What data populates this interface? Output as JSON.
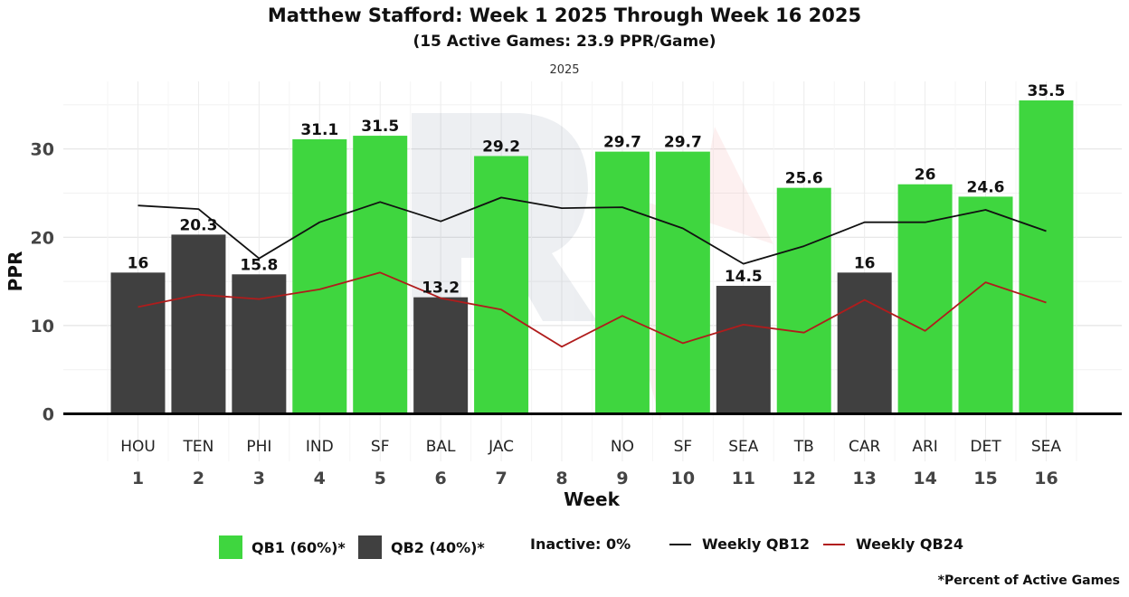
{
  "chart_data": {
    "type": "bar",
    "title": "Matthew Stafford: Week 1 2025 Through Week 16 2025",
    "subtitle": "(15 Active Games: 23.9 PPR/Game)",
    "facet_label": "2025",
    "xlabel": "Week",
    "ylabel": "PPR",
    "ylim": [
      0,
      36.5
    ],
    "y_ticks": [
      0,
      10,
      20,
      30
    ],
    "weeks": [
      1,
      2,
      3,
      4,
      5,
      6,
      7,
      8,
      9,
      10,
      11,
      12,
      13,
      14,
      15,
      16
    ],
    "opponents": [
      "HOU",
      "TEN",
      "PHI",
      "IND",
      "SF",
      "BAL",
      "JAC",
      "",
      "NO",
      "SF",
      "SEA",
      "TB",
      "CAR",
      "ARI",
      "DET",
      "SEA"
    ],
    "values": [
      16,
      20.3,
      15.8,
      31.1,
      31.5,
      13.2,
      29.2,
      null,
      29.7,
      29.7,
      14.5,
      25.6,
      16,
      26,
      24.6,
      35.5
    ],
    "tiers": [
      "QB2",
      "QB2",
      "QB2",
      "QB1",
      "QB1",
      "QB2",
      "QB1",
      null,
      "QB1",
      "QB1",
      "QB2",
      "QB1",
      "QB2",
      "QB1",
      "QB1",
      "QB1"
    ],
    "series_lines": [
      {
        "name": "Weekly QB12",
        "values": [
          23.6,
          23.2,
          17.6,
          21.7,
          24,
          21.8,
          24.5,
          23.3,
          23.4,
          21,
          17,
          19,
          21.7,
          21.7,
          23.1,
          20.7
        ]
      },
      {
        "name": "Weekly QB24",
        "values": [
          12.1,
          13.5,
          13,
          14.1,
          16,
          13.1,
          11.8,
          7.6,
          11.1,
          8,
          10.1,
          9.2,
          12.9,
          9.4,
          14.9,
          12.6
        ]
      }
    ],
    "colors": {
      "QB1": "#3fd63f",
      "QB2": "#404040",
      "QB12": "#111111",
      "QB24": "#b01c1c"
    }
  },
  "legend": {
    "qb1_label": "QB1 (60%)*",
    "qb2_label": "QB2 (40%)*",
    "inactive_label": "Inactive: 0%",
    "qb12_label": "Weekly QB12",
    "qb24_label": "Weekly QB24"
  },
  "footnote": "*Percent of Active Games"
}
